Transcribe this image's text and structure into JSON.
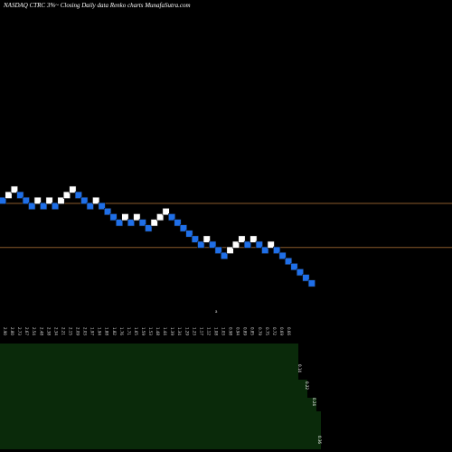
{
  "title": "NASDAQ CTRC 3%~  Closing Daily data  Renko  charts MunafaSutra.com",
  "colors": {
    "background": "#000000",
    "up_brick": "#ffffff",
    "down_brick": "#1f6fe8",
    "brick_edge": "#111111",
    "hline": "#8a5a2b",
    "volume_fill": "#0a2a0a",
    "text": "#dddddd"
  },
  "chart_data": {
    "type": "renko",
    "bricks": [
      {
        "dir": "down",
        "level": 6
      },
      {
        "dir": "up",
        "level": 7
      },
      {
        "dir": "up",
        "level": 8
      },
      {
        "dir": "down",
        "level": 7
      },
      {
        "dir": "down",
        "level": 6
      },
      {
        "dir": "down",
        "level": 5
      },
      {
        "dir": "up",
        "level": 6
      },
      {
        "dir": "down",
        "level": 5
      },
      {
        "dir": "up",
        "level": 6
      },
      {
        "dir": "down",
        "level": 5
      },
      {
        "dir": "up",
        "level": 6
      },
      {
        "dir": "up",
        "level": 7
      },
      {
        "dir": "up",
        "level": 8
      },
      {
        "dir": "down",
        "level": 7
      },
      {
        "dir": "down",
        "level": 6
      },
      {
        "dir": "down",
        "level": 5
      },
      {
        "dir": "up",
        "level": 6
      },
      {
        "dir": "down",
        "level": 5
      },
      {
        "dir": "down",
        "level": 4
      },
      {
        "dir": "down",
        "level": 3
      },
      {
        "dir": "down",
        "level": 2
      },
      {
        "dir": "up",
        "level": 3
      },
      {
        "dir": "down",
        "level": 2
      },
      {
        "dir": "up",
        "level": 3
      },
      {
        "dir": "down",
        "level": 2
      },
      {
        "dir": "down",
        "level": 1
      },
      {
        "dir": "up",
        "level": 2
      },
      {
        "dir": "up",
        "level": 3
      },
      {
        "dir": "up",
        "level": 4
      },
      {
        "dir": "down",
        "level": 3
      },
      {
        "dir": "down",
        "level": 2
      },
      {
        "dir": "down",
        "level": 1
      },
      {
        "dir": "down",
        "level": 0
      },
      {
        "dir": "down",
        "level": -1
      },
      {
        "dir": "down",
        "level": -2
      },
      {
        "dir": "up",
        "level": -1
      },
      {
        "dir": "down",
        "level": -2
      },
      {
        "dir": "down",
        "level": -3
      },
      {
        "dir": "down",
        "level": -4
      },
      {
        "dir": "up",
        "level": -3
      },
      {
        "dir": "up",
        "level": -2
      },
      {
        "dir": "up",
        "level": -1
      },
      {
        "dir": "down",
        "level": -2
      },
      {
        "dir": "up",
        "level": -1
      },
      {
        "dir": "down",
        "level": -2
      },
      {
        "dir": "down",
        "level": -3
      },
      {
        "dir": "up",
        "level": -2
      },
      {
        "dir": "down",
        "level": -3
      },
      {
        "dir": "down",
        "level": -4
      },
      {
        "dir": "down",
        "level": -5
      },
      {
        "dir": "down",
        "level": -6
      },
      {
        "dir": "down",
        "level": -7
      },
      {
        "dir": "down",
        "level": -8
      },
      {
        "dir": "down",
        "level": -9
      }
    ],
    "reference_levels": [
      5.5,
      -2.5
    ],
    "x_tick_labels": [
      "2.90",
      "2.80",
      "2.73",
      "2.67",
      "2.54",
      "2.48",
      "2.38",
      "2.34",
      "2.21",
      "2.15",
      "2.09",
      "2.03",
      "1.97",
      "1.94",
      "1.88",
      "1.82",
      "1.76",
      "1.71",
      "1.65",
      "1.59",
      "1.53",
      "1.48",
      "1.44",
      "1.39",
      "1.34",
      "1.29",
      "1.23",
      "1.17",
      "1.12",
      "1.08",
      "1.03",
      "0.98",
      "0.94",
      "0.89",
      "0.85",
      "0.79",
      "0.75",
      "0.72",
      "0.69",
      "0.66"
    ],
    "volume_block": {
      "left_label_index": 0,
      "labels": [
        "0.14",
        "0.22",
        "0.24",
        "0.36"
      ]
    },
    "top_marker": "a"
  }
}
